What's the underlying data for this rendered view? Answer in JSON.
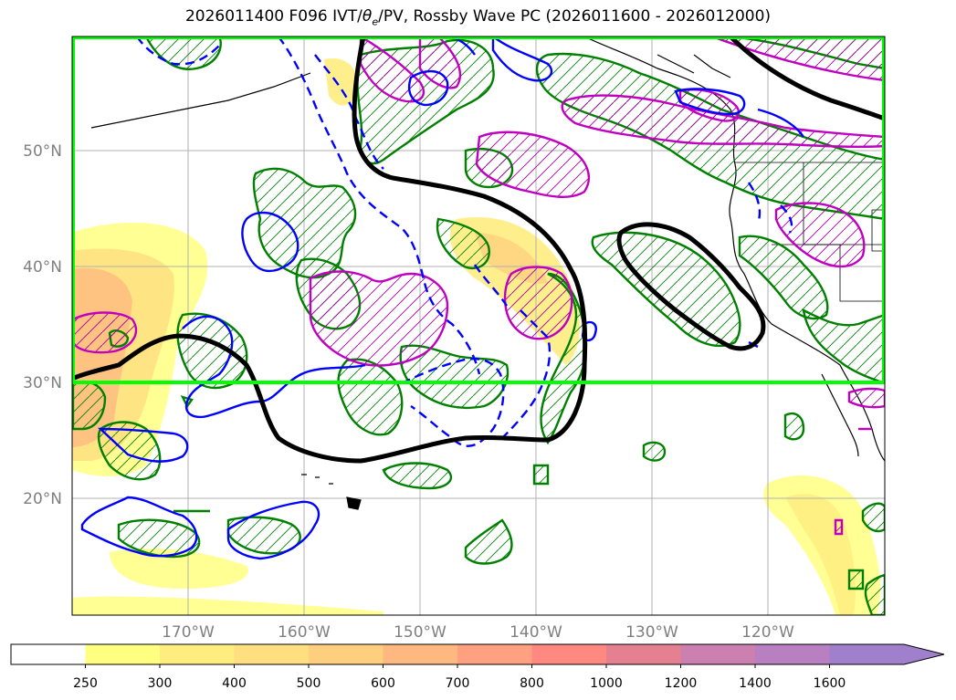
{
  "title": {
    "prefix": "2026011400 F096 IVT/",
    "theta": "θ",
    "theta_sub": "e",
    "suffix": "/PV, Rossby Wave PC (2026011600 - 2026012000)"
  },
  "map": {
    "lat_labels": [
      "50°N",
      "40°N",
      "30°N",
      "20°N"
    ],
    "lon_labels": [
      "170°W",
      "160°W",
      "150°W",
      "140°W",
      "130°W",
      "120°W"
    ],
    "extent": {
      "lon": [
        -180,
        -110
      ],
      "lat": [
        10,
        60
      ]
    },
    "box_color": "#00ff00",
    "colors": {
      "trough_line": "#000000",
      "pv_positive": "#008000",
      "pv_negative": "#0000ff",
      "theta": "#c000c0"
    }
  },
  "colorbar": {
    "levels": [
      "250",
      "300",
      "400",
      "500",
      "600",
      "700",
      "800",
      "1000",
      "1200",
      "1400",
      "1600"
    ],
    "colors": [
      "#ffffff",
      "#ffff80",
      "#ffed80",
      "#ffdf80",
      "#ffcf80",
      "#ffb880",
      "#ffa080",
      "#ff8880",
      "#e48090",
      "#cc80b0",
      "#b880c0",
      "#a080cc"
    ]
  }
}
